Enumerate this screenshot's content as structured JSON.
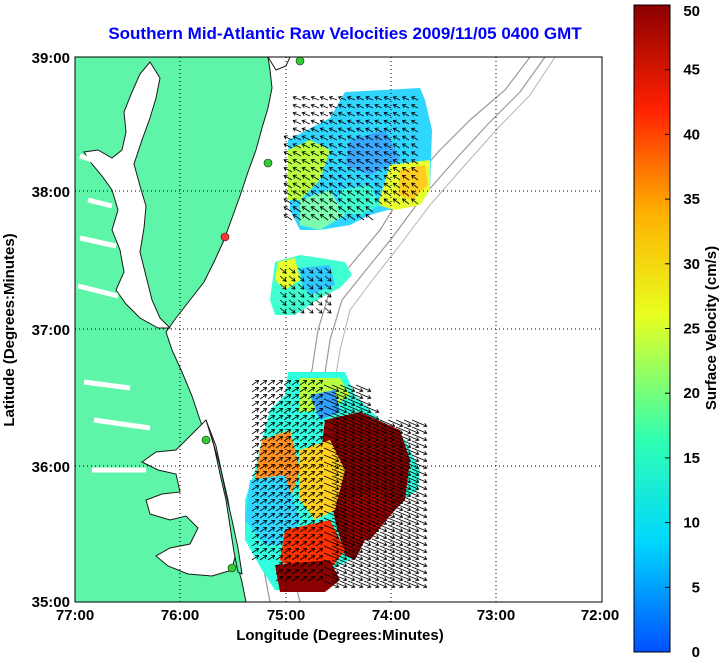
{
  "title": "Southern Mid-Atlantic Raw Velocities 2009/11/05 0400 GMT",
  "x_axis": {
    "label": "Longitude (Degrees:Minutes)",
    "ticks": [
      "77:00",
      "76:00",
      "75:00",
      "74:00",
      "73:00",
      "72:00"
    ]
  },
  "y_axis": {
    "label": "Latitude (Degrees:Minutes)",
    "ticks": [
      "39:00",
      "38:00",
      "37:00",
      "36:00",
      "35:00"
    ]
  },
  "colorbar": {
    "label": "Surface Velocity (cm/s)",
    "ticks": [
      "50",
      "45",
      "40",
      "35",
      "30",
      "25",
      "20",
      "15",
      "10",
      "5",
      "0"
    ],
    "min": 0,
    "max": 50,
    "colors": [
      "#0050ff",
      "#00d8ff",
      "#30ffb0",
      "#e8ff20",
      "#ffb000",
      "#ff2000",
      "#8b0000"
    ]
  },
  "map": {
    "lon_range": [
      -77,
      -72
    ],
    "lat_range": [
      35,
      39
    ],
    "land_color": "#5ff5a8",
    "water_color": "#ffffff",
    "grid": "dotted",
    "station_color": "#33cc33",
    "active_station_color": "#ff3333"
  }
}
